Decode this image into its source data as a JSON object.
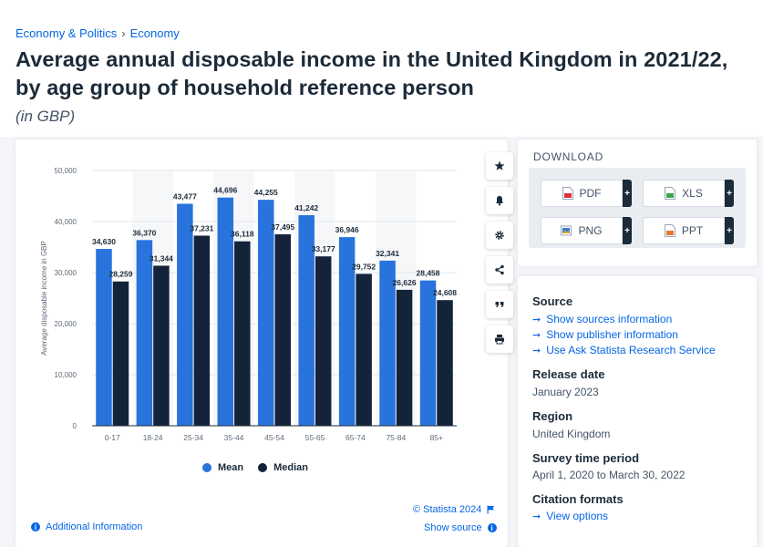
{
  "breadcrumb": {
    "items": [
      "Economy & Politics",
      "Economy"
    ],
    "separator": "›"
  },
  "title": "Average annual disposable income in the United Kingdom in 2021/22, by age group of household reference person",
  "subtitle": "(in GBP)",
  "toolbar": {
    "icons": [
      "star-icon",
      "bell-icon",
      "gear-icon",
      "share-icon",
      "quote-icon",
      "print-icon"
    ]
  },
  "chart_data": {
    "type": "bar",
    "categories": [
      "0-17",
      "18-24",
      "25-34",
      "35-44",
      "45-54",
      "55-65",
      "65-74",
      "75-84",
      "85+"
    ],
    "series": [
      {
        "name": "Mean",
        "color": "#2873dc",
        "values": [
          34630,
          36370,
          43477,
          44696,
          44255,
          41242,
          36946,
          32341,
          28458
        ]
      },
      {
        "name": "Median",
        "color": "#13233a",
        "values": [
          28259,
          31344,
          37231,
          36118,
          37495,
          33177,
          29752,
          26626,
          24608
        ]
      }
    ],
    "value_labels": {
      "Mean": [
        "34,630",
        "36,370",
        "43,477",
        "44,696",
        "44,255",
        "41,242",
        "36,946",
        "32,341",
        "28,458"
      ],
      "Median": [
        "28,259",
        "31,344",
        "37,231",
        "36,118",
        "37,495",
        "33,177",
        "29,752",
        "26,626",
        "24,608"
      ]
    },
    "yticks": [
      0,
      10000,
      20000,
      30000,
      40000,
      50000
    ],
    "ytick_labels": [
      "0",
      "10,000",
      "20,000",
      "30,000",
      "40,000",
      "50,000"
    ],
    "ylim": [
      0,
      50000
    ],
    "ylabel": "Average disposable income in GBP",
    "xlabel": "",
    "grid": true,
    "legend_position": "bottom-center"
  },
  "legend": {
    "mean": "Mean",
    "median": "Median"
  },
  "footer": {
    "copyright": "© Statista 2024",
    "additional_info": "Additional Information",
    "show_source": "Show source"
  },
  "download": {
    "title": "DOWNLOAD",
    "buttons": [
      {
        "label": "PDF",
        "color": "#e0303a"
      },
      {
        "label": "XLS",
        "color": "#3aa54a"
      },
      {
        "label": "PNG",
        "color": "#3a7bd5"
      },
      {
        "label": "PPT",
        "color": "#e8762d"
      }
    ],
    "plus": "+"
  },
  "source_panel": {
    "source_heading": "Source",
    "source_links": [
      "Show sources information",
      "Show publisher information",
      "Use Ask Statista Research Service"
    ],
    "release_heading": "Release date",
    "release_value": "January 2023",
    "region_heading": "Region",
    "region_value": "United Kingdom",
    "survey_heading": "Survey time period",
    "survey_value": "April 1, 2020 to March 30, 2022",
    "citation_heading": "Citation formats",
    "citation_link": "View options"
  }
}
